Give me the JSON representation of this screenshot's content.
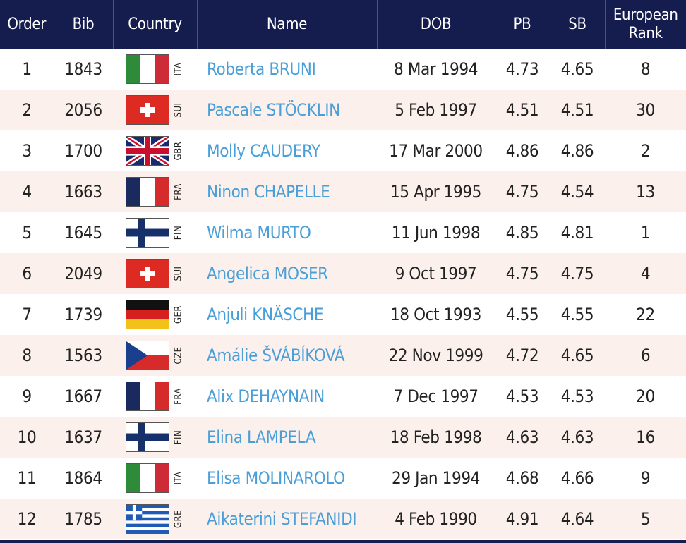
{
  "headers": {
    "order": "Order",
    "bib": "Bib",
    "country": "Country",
    "name": "Name",
    "dob": "DOB",
    "pb": "PB",
    "sb": "SB",
    "rank_line1": "European",
    "rank_line2": "Rank"
  },
  "rows": [
    {
      "order": "1",
      "bib": "1843",
      "flag": "ITA",
      "code": "ITA",
      "name": "Roberta BRUNI",
      "dob": "8 Mar 1994",
      "pb": "4.73",
      "sb": "4.65",
      "rank": "8"
    },
    {
      "order": "2",
      "bib": "2056",
      "flag": "SUI",
      "code": "SUI",
      "name": "Pascale STÖCKLIN",
      "dob": "5 Feb 1997",
      "pb": "4.51",
      "sb": "4.51",
      "rank": "30"
    },
    {
      "order": "3",
      "bib": "1700",
      "flag": "GBR",
      "code": "GBR",
      "name": "Molly CAUDERY",
      "dob": "17 Mar 2000",
      "pb": "4.86",
      "sb": "4.86",
      "rank": "2"
    },
    {
      "order": "4",
      "bib": "1663",
      "flag": "FRA",
      "code": "FRA",
      "name": "Ninon CHAPELLE",
      "dob": "15 Apr 1995",
      "pb": "4.75",
      "sb": "4.54",
      "rank": "13"
    },
    {
      "order": "5",
      "bib": "1645",
      "flag": "FIN",
      "code": "FIN",
      "name": "Wilma MURTO",
      "dob": "11 Jun 1998",
      "pb": "4.85",
      "sb": "4.81",
      "rank": "1"
    },
    {
      "order": "6",
      "bib": "2049",
      "flag": "SUI",
      "code": "SUI",
      "name": "Angelica MOSER",
      "dob": "9 Oct 1997",
      "pb": "4.75",
      "sb": "4.75",
      "rank": "4"
    },
    {
      "order": "7",
      "bib": "1739",
      "flag": "GER",
      "code": "GER",
      "name": "Anjuli KNÄSCHE",
      "dob": "18 Oct 1993",
      "pb": "4.55",
      "sb": "4.55",
      "rank": "22"
    },
    {
      "order": "8",
      "bib": "1563",
      "flag": "CZE",
      "code": "CZE",
      "name": "Amálie ŠVÁBÍKOVÁ",
      "dob": "22 Nov 1999",
      "pb": "4.72",
      "sb": "4.65",
      "rank": "6"
    },
    {
      "order": "9",
      "bib": "1667",
      "flag": "FRA",
      "code": "FRA",
      "name": "Alix DEHAYNAIN",
      "dob": "7 Dec 1997",
      "pb": "4.53",
      "sb": "4.53",
      "rank": "20"
    },
    {
      "order": "10",
      "bib": "1637",
      "flag": "FIN",
      "code": "FIN",
      "name": "Elina LAMPELA",
      "dob": "18 Feb 1998",
      "pb": "4.63",
      "sb": "4.63",
      "rank": "16"
    },
    {
      "order": "11",
      "bib": "1864",
      "flag": "ITA",
      "code": "ITA",
      "name": "Elisa MOLINAROLO",
      "dob": "29 Jan 1994",
      "pb": "4.68",
      "sb": "4.66",
      "rank": "9"
    },
    {
      "order": "12",
      "bib": "1785",
      "flag": "GRE",
      "code": "GRE",
      "name": "Aikaterini STEFANIDI",
      "dob": "4 Feb 1990",
      "pb": "4.91",
      "sb": "4.64",
      "rank": "5"
    }
  ],
  "colors": {
    "header_bg": "#151c4e",
    "alt_row_bg": "#fbf0ec",
    "name_link": "#4a9fd8"
  }
}
